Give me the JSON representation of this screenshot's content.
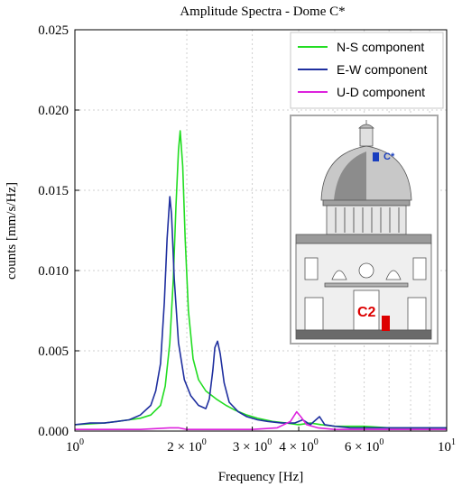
{
  "chart_data": {
    "type": "line",
    "title": "Amplitude Spectra - Dome C*",
    "xlabel": "Frequency [Hz]",
    "ylabel": "counts [mm/s/Hz]",
    "x_scale": "log",
    "xlim": [
      1,
      10
    ],
    "ylim": [
      0,
      0.025
    ],
    "grid": true,
    "legend_position": "top-right",
    "x_ticks": [
      {
        "value": 1,
        "base": "10",
        "exp": "0",
        "mult": ""
      },
      {
        "value": 2,
        "base": "10",
        "exp": "0",
        "mult": "2 × "
      },
      {
        "value": 3,
        "base": "10",
        "exp": "0",
        "mult": "3 × "
      },
      {
        "value": 4,
        "base": "10",
        "exp": "0",
        "mult": "4 × "
      },
      {
        "value": 6,
        "base": "10",
        "exp": "0",
        "mult": "6 × "
      },
      {
        "value": 10,
        "base": "10",
        "exp": "1",
        "mult": ""
      }
    ],
    "x_minor_ticks": [
      5,
      7,
      8,
      9
    ],
    "y_ticks": [
      {
        "value": 0,
        "label": "0.000"
      },
      {
        "value": 0.005,
        "label": "0.005"
      },
      {
        "value": 0.01,
        "label": "0.010"
      },
      {
        "value": 0.015,
        "label": "0.015"
      },
      {
        "value": 0.02,
        "label": "0.020"
      },
      {
        "value": 0.025,
        "label": "0.025"
      }
    ],
    "series": [
      {
        "name": "N-S component",
        "color": "#22dd22",
        "points": [
          [
            1.0,
            0.0004
          ],
          [
            1.1,
            0.00045
          ],
          [
            1.2,
            0.0005
          ],
          [
            1.3,
            0.0006
          ],
          [
            1.4,
            0.0007
          ],
          [
            1.5,
            0.0008
          ],
          [
            1.6,
            0.001
          ],
          [
            1.7,
            0.0016
          ],
          [
            1.75,
            0.0028
          ],
          [
            1.8,
            0.0055
          ],
          [
            1.84,
            0.0095
          ],
          [
            1.87,
            0.014
          ],
          [
            1.9,
            0.0175
          ],
          [
            1.92,
            0.0187
          ],
          [
            1.95,
            0.0165
          ],
          [
            1.98,
            0.012
          ],
          [
            2.02,
            0.0075
          ],
          [
            2.08,
            0.0045
          ],
          [
            2.15,
            0.0032
          ],
          [
            2.25,
            0.0025
          ],
          [
            2.4,
            0.002
          ],
          [
            2.55,
            0.0016
          ],
          [
            2.7,
            0.0013
          ],
          [
            2.9,
            0.001
          ],
          [
            3.1,
            0.0008
          ],
          [
            3.4,
            0.0006
          ],
          [
            3.7,
            0.0005
          ],
          [
            4.0,
            0.0004
          ],
          [
            4.3,
            0.0005
          ],
          [
            4.6,
            0.0004
          ],
          [
            5.0,
            0.0003
          ],
          [
            5.5,
            0.0003
          ],
          [
            6.0,
            0.0003
          ],
          [
            7.0,
            0.0002
          ],
          [
            8.0,
            0.0002
          ],
          [
            9.0,
            0.0002
          ],
          [
            10.0,
            0.0002
          ]
        ]
      },
      {
        "name": "E-W component",
        "color": "#1f2f9f",
        "points": [
          [
            1.0,
            0.0004
          ],
          [
            1.1,
            0.0005
          ],
          [
            1.2,
            0.0005
          ],
          [
            1.3,
            0.0006
          ],
          [
            1.4,
            0.0007
          ],
          [
            1.5,
            0.001
          ],
          [
            1.6,
            0.0016
          ],
          [
            1.65,
            0.0025
          ],
          [
            1.7,
            0.0042
          ],
          [
            1.74,
            0.008
          ],
          [
            1.77,
            0.012
          ],
          [
            1.8,
            0.0146
          ],
          [
            1.82,
            0.0135
          ],
          [
            1.85,
            0.0095
          ],
          [
            1.9,
            0.0055
          ],
          [
            1.97,
            0.0032
          ],
          [
            2.05,
            0.0022
          ],
          [
            2.15,
            0.0016
          ],
          [
            2.25,
            0.0014
          ],
          [
            2.3,
            0.002
          ],
          [
            2.35,
            0.0038
          ],
          [
            2.38,
            0.0052
          ],
          [
            2.42,
            0.0056
          ],
          [
            2.46,
            0.0048
          ],
          [
            2.52,
            0.003
          ],
          [
            2.6,
            0.0018
          ],
          [
            2.75,
            0.0012
          ],
          [
            2.9,
            0.0009
          ],
          [
            3.1,
            0.0007
          ],
          [
            3.3,
            0.0006
          ],
          [
            3.6,
            0.0005
          ],
          [
            3.9,
            0.0005
          ],
          [
            4.1,
            0.0007
          ],
          [
            4.3,
            0.0004
          ],
          [
            4.55,
            0.0009
          ],
          [
            4.7,
            0.0004
          ],
          [
            5.0,
            0.0003
          ],
          [
            5.5,
            0.0002
          ],
          [
            6.0,
            0.0002
          ],
          [
            7.0,
            0.0002
          ],
          [
            8.0,
            0.0002
          ],
          [
            9.0,
            0.0002
          ],
          [
            10.0,
            0.0002
          ]
        ]
      },
      {
        "name": "U-D component",
        "color": "#dd22dd",
        "points": [
          [
            1.0,
            0.0001
          ],
          [
            1.5,
            0.0001
          ],
          [
            1.8,
            0.0002
          ],
          [
            1.9,
            0.0002
          ],
          [
            2.0,
            0.0001
          ],
          [
            2.5,
            0.0001
          ],
          [
            3.0,
            0.0001
          ],
          [
            3.5,
            0.0002
          ],
          [
            3.8,
            0.0006
          ],
          [
            3.95,
            0.0012
          ],
          [
            4.05,
            0.0009
          ],
          [
            4.2,
            0.0004
          ],
          [
            4.5,
            0.0002
          ],
          [
            5.0,
            0.0001
          ],
          [
            6.0,
            0.0001
          ],
          [
            7.0,
            0.0001
          ],
          [
            8.0,
            0.0001
          ],
          [
            9.0,
            0.0001
          ],
          [
            10.0,
            0.0001
          ]
        ]
      }
    ],
    "inset": {
      "description_labels": {
        "sensor_top": "C*",
        "sensor_bottom": "C2"
      },
      "sensor_top_color": "#1a3fbf",
      "sensor_bottom_color": "#dd0000"
    }
  }
}
